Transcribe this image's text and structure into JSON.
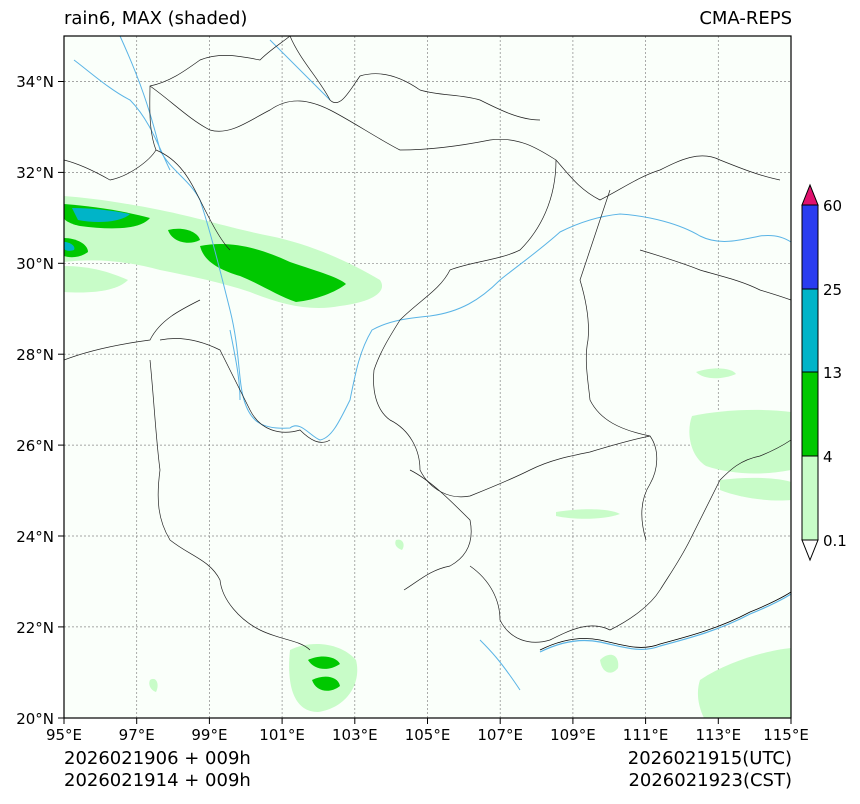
{
  "header": {
    "left_title": "rain6, MAX (shaded)",
    "right_title": "CMA-REPS"
  },
  "axes": {
    "lat_labels": [
      "34°N",
      "32°N",
      "30°N",
      "28°N",
      "26°N",
      "24°N",
      "22°N",
      "20°N"
    ],
    "lon_labels": [
      "95°E",
      "97°E",
      "99°E",
      "101°E",
      "103°E",
      "105°E",
      "107°E",
      "109°E",
      "111°E",
      "113°E",
      "115°E"
    ]
  },
  "colorbar": {
    "levels": [
      "0.1",
      "4",
      "13",
      "25",
      "60"
    ],
    "colors": {
      "c1": "#c8fcc8",
      "c2": "#00c800",
      "c3": "#00b4c8",
      "c4": "#2a3cf0",
      "over": "#e0116e",
      "under": "#ffffff"
    }
  },
  "footer": {
    "init_utc": "2026021906  +  009h",
    "init_cst": "2026021914  +  009h",
    "valid_utc": "2026021915(UTC)",
    "valid_cst": "2026021923(CST)"
  }
}
